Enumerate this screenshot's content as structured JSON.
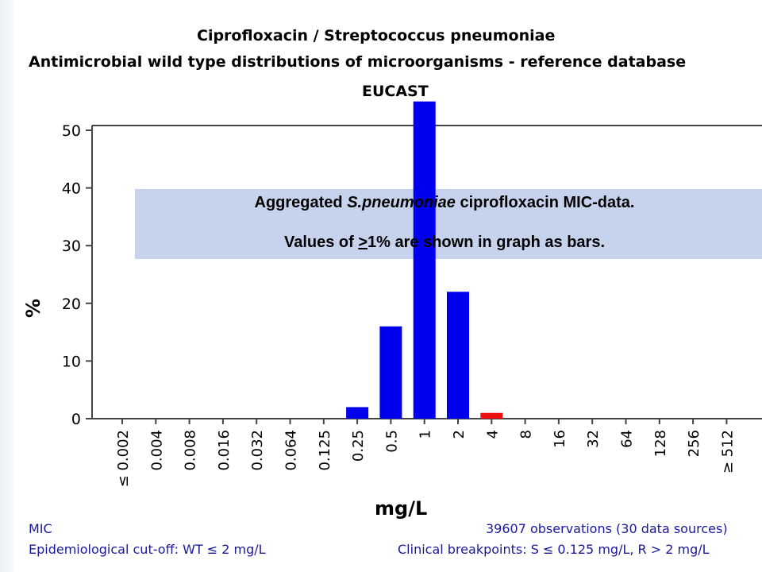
{
  "header": {
    "title": "Ciprofloxacin / Streptococcus pneumoniae",
    "subtitle": "Antimicrobial wild type distributions of microorganisms - reference database",
    "source_label": "EUCAST"
  },
  "annotation": {
    "line1_prefix": "Aggregated ",
    "line1_italic": "S.pneumoniae",
    "line1_suffix": " ciprofloxacin MIC-data.",
    "line2_prefix": "Values of ",
    "line2_underlined": ">",
    "line2_suffix": "1% are shown in graph as bars."
  },
  "footer": {
    "left_line1": "MIC",
    "left_line2": "Epidemiological cut-off: WT ≤ 2 mg/L",
    "right_line1": "39607 observations (30 data sources)",
    "right_line2": "Clinical breakpoints: S ≤ 0.125 mg/L, R > 2 mg/L"
  },
  "colors": {
    "wild_type_bar": "#0000ee",
    "resistant_bar": "#ee1111",
    "annotation_band": "#a9bbe3",
    "footer_text": "#1a1a99"
  },
  "chart_data": {
    "type": "bar",
    "title": "Ciprofloxacin / Streptococcus pneumoniae",
    "xlabel": "mg/L",
    "ylabel": "%",
    "ylim": [
      0,
      50
    ],
    "yticks": [
      0,
      10,
      20,
      30,
      40,
      50
    ],
    "grid": false,
    "categories": [
      "≤ 0.002",
      "0.004",
      "0.008",
      "0.016",
      "0.032",
      "0.064",
      "0.125",
      "0.25",
      "0.5",
      "1",
      "2",
      "4",
      "8",
      "16",
      "32",
      "64",
      "128",
      "256",
      "≥ 512"
    ],
    "series": [
      {
        "values": [
          0,
          0,
          0,
          0,
          0,
          0,
          0,
          2,
          16,
          55,
          22,
          1,
          0,
          0,
          0,
          0,
          0,
          0,
          0
        ],
        "colors": [
          "blue",
          "blue",
          "blue",
          "blue",
          "blue",
          "blue",
          "blue",
          "blue",
          "blue",
          "blue",
          "blue",
          "red",
          "red",
          "red",
          "red",
          "red",
          "red",
          "red",
          "red"
        ]
      }
    ]
  }
}
